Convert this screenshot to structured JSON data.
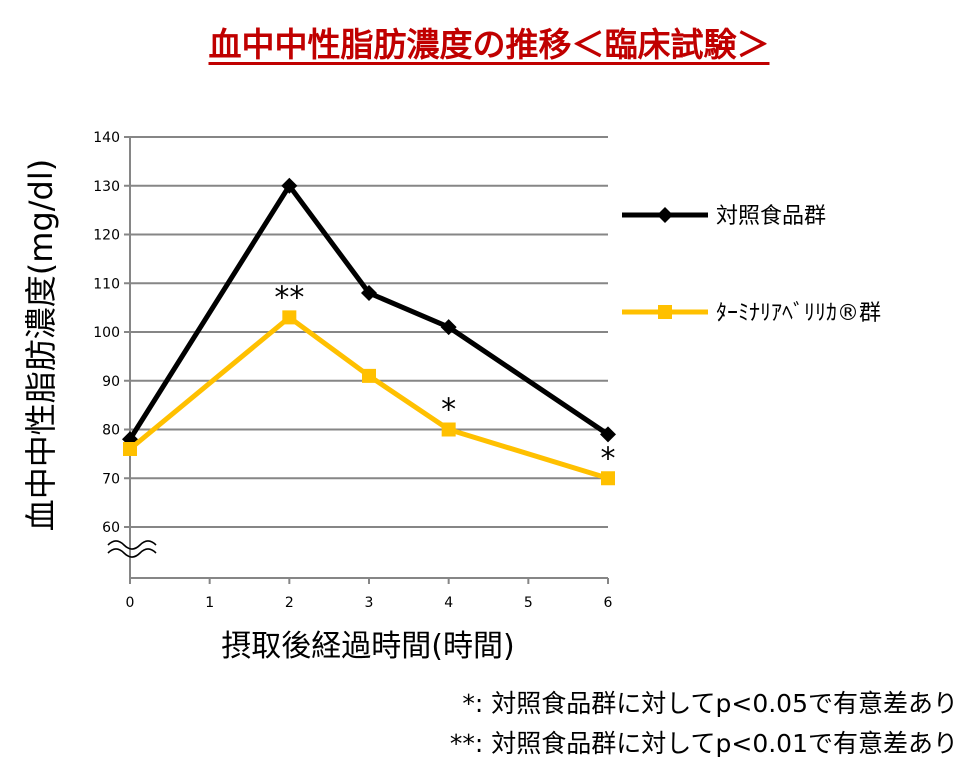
{
  "title": "血中中性脂肪濃度の推移＜臨床試験＞",
  "chart_data": {
    "type": "line",
    "title": "血中中性脂肪濃度の推移＜臨床試験＞",
    "xlabel": "摂取後経過時間(時間)",
    "ylabel": "血中中性脂肪濃度(mg/dl)",
    "x": [
      0,
      1,
      2,
      3,
      4,
      5,
      6
    ],
    "y_ticks": [
      60,
      70,
      80,
      90,
      100,
      110,
      120,
      130,
      140
    ],
    "ylim": [
      60,
      140
    ],
    "axis_break": true,
    "grid": true,
    "legend_position": "right",
    "series": [
      {
        "name": "対照食品群",
        "color": "#000000",
        "marker": "diamond",
        "points": [
          [
            0,
            78
          ],
          [
            2,
            130
          ],
          [
            3,
            108
          ],
          [
            4,
            101
          ],
          [
            6,
            79
          ]
        ]
      },
      {
        "name": "ﾀｰﾐﾅﾘｱﾍﾞﾘﾘｶ®群",
        "color": "#ffc000",
        "marker": "square",
        "points": [
          [
            0,
            76
          ],
          [
            2,
            103
          ],
          [
            3,
            91
          ],
          [
            4,
            80
          ],
          [
            6,
            70
          ]
        ]
      }
    ],
    "annotations": [
      {
        "x": 2,
        "y": 103,
        "text": "**"
      },
      {
        "x": 4,
        "y": 80,
        "text": "*"
      },
      {
        "x": 6,
        "y": 70,
        "text": "*"
      }
    ]
  },
  "notes": [
    "*: 対照食品群に対してp<0.05で有意差あり",
    "**: 対照食品群に対してp<0.01で有意差あり"
  ]
}
